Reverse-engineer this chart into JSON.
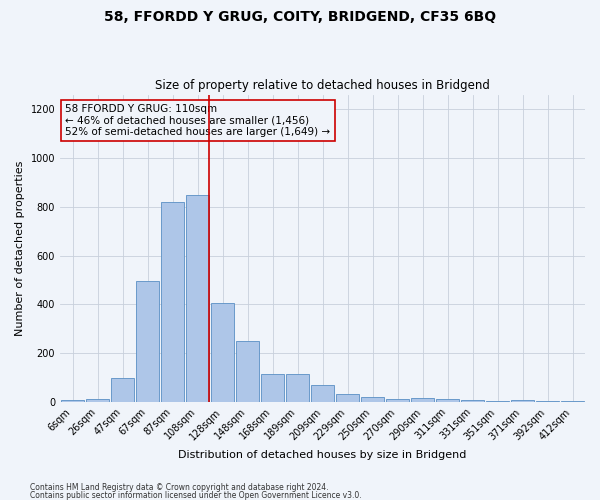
{
  "title": "58, FFORDD Y GRUG, COITY, BRIDGEND, CF35 6BQ",
  "subtitle": "Size of property relative to detached houses in Bridgend",
  "xlabel": "Distribution of detached houses by size in Bridgend",
  "ylabel": "Number of detached properties",
  "categories": [
    "6sqm",
    "26sqm",
    "47sqm",
    "67sqm",
    "87sqm",
    "108sqm",
    "128sqm",
    "148sqm",
    "168sqm",
    "189sqm",
    "209sqm",
    "229sqm",
    "250sqm",
    "270sqm",
    "290sqm",
    "311sqm",
    "331sqm",
    "351sqm",
    "371sqm",
    "392sqm",
    "412sqm"
  ],
  "values": [
    8,
    12,
    100,
    495,
    820,
    850,
    405,
    250,
    115,
    115,
    68,
    33,
    22,
    13,
    14,
    13,
    8,
    5,
    8,
    5,
    3
  ],
  "bar_color": "#aec6e8",
  "bar_edge_color": "#5a8fc4",
  "highlight_index": 5,
  "highlight_color": "#cc0000",
  "annotation_title": "58 FFORDD Y GRUG: 110sqm",
  "annotation_line1": "← 46% of detached houses are smaller (1,456)",
  "annotation_line2": "52% of semi-detached houses are larger (1,649) →",
  "annotation_box_color": "#cc0000",
  "ylim": [
    0,
    1260
  ],
  "yticks": [
    0,
    200,
    400,
    600,
    800,
    1000,
    1200
  ],
  "footnote1": "Contains HM Land Registry data © Crown copyright and database right 2024.",
  "footnote2": "Contains public sector information licensed under the Open Government Licence v3.0.",
  "bg_color": "#f0f4fa",
  "grid_color": "#c8d0dc",
  "title_fontsize": 10,
  "subtitle_fontsize": 8.5,
  "tick_fontsize": 7,
  "ylabel_fontsize": 8,
  "xlabel_fontsize": 8,
  "annot_fontsize": 7.5,
  "footnote_fontsize": 5.5
}
